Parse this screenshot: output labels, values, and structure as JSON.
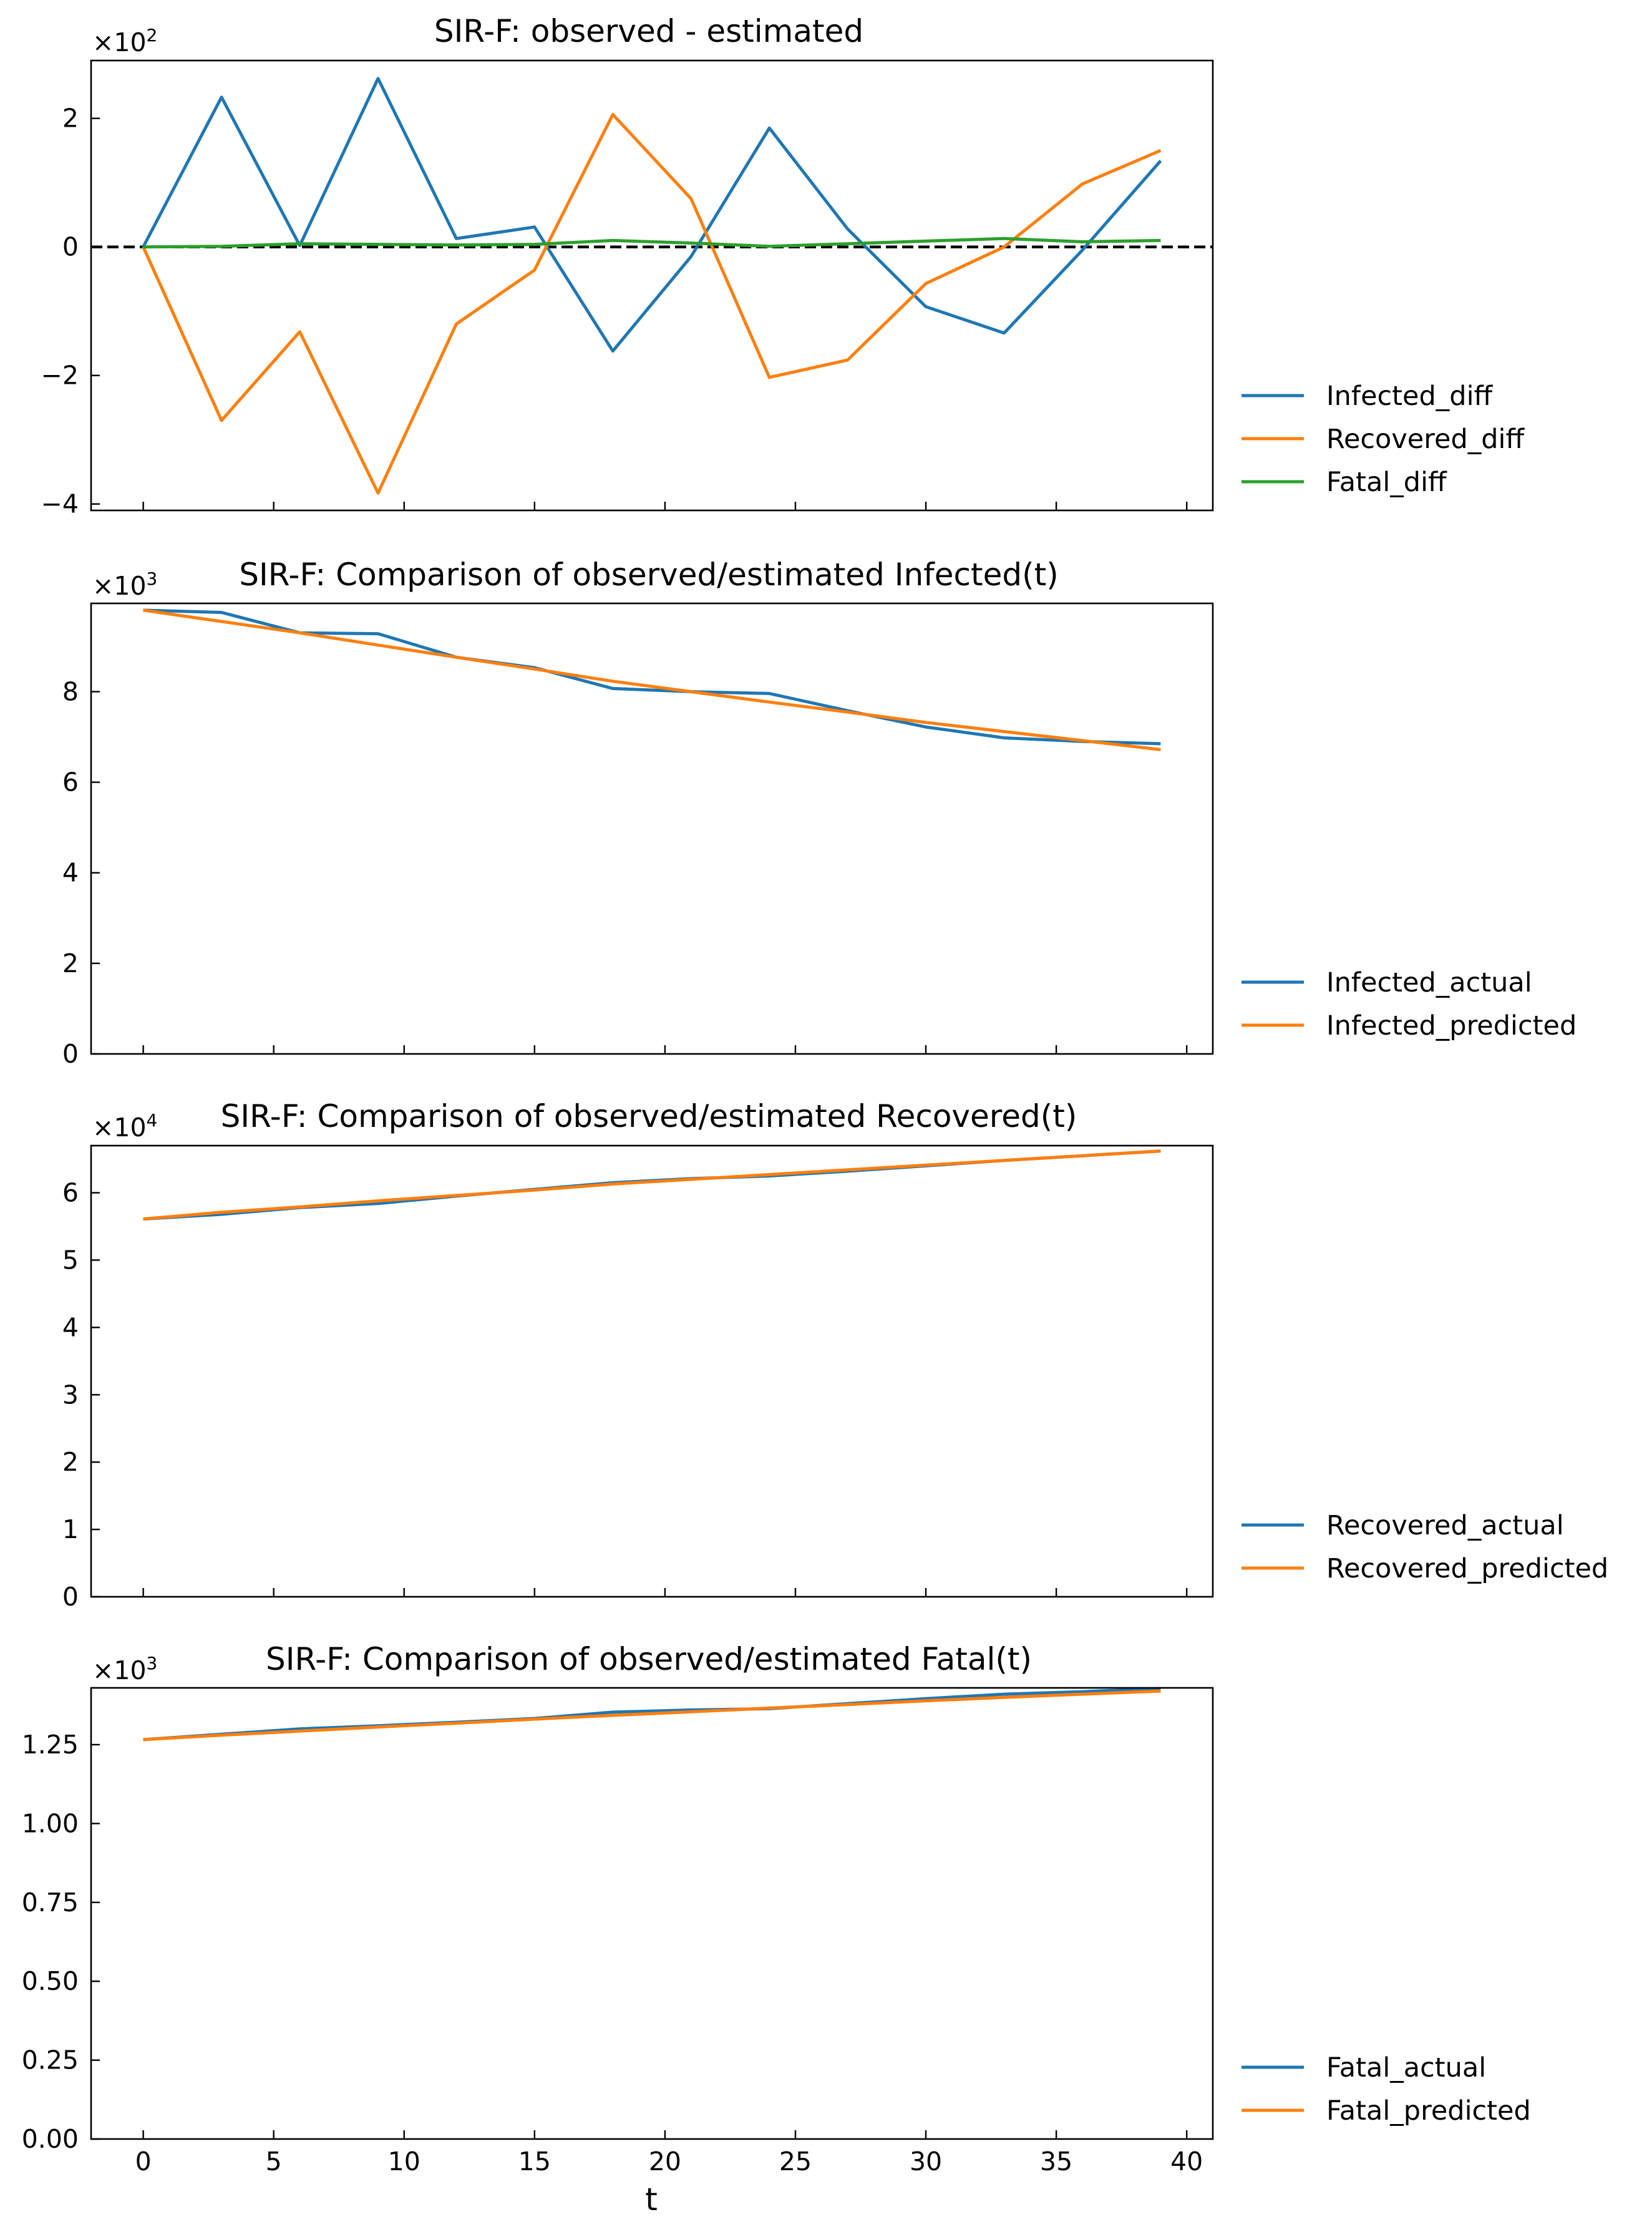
{
  "colors": {
    "blue": "#1f77b4",
    "orange": "#ff7f0e",
    "green": "#2ca02c",
    "zero_line": "#000000"
  },
  "xlabel": "t",
  "x_ticks": [
    0,
    5,
    10,
    15,
    20,
    25,
    30,
    35,
    40
  ],
  "chart_data": [
    {
      "type": "line",
      "title": "SIR-F: observed - estimated",
      "multiplier": "×10",
      "exponent": "2",
      "x": [
        0,
        3,
        6,
        9,
        12,
        15,
        18,
        21,
        24,
        27,
        30,
        33,
        36,
        39
      ],
      "xlim": [
        -2,
        41
      ],
      "ylim": [
        -4.1,
        2.9
      ],
      "y_ticks": [
        -4,
        -2,
        0,
        2
      ],
      "y_tick_labels": [
        "−4",
        "−2",
        "0",
        "2"
      ],
      "zero_line": true,
      "grid": false,
      "legend_position": "right",
      "series": [
        {
          "name": "Infected_diff",
          "color": "blue",
          "values": [
            0,
            2.33,
            0.02,
            2.62,
            0.13,
            0.31,
            -1.62,
            -0.15,
            1.85,
            0.28,
            -0.93,
            -1.34,
            -0.05,
            1.34
          ]
        },
        {
          "name": "Recovered_diff",
          "color": "orange",
          "values": [
            0,
            -2.7,
            -1.32,
            -3.83,
            -1.2,
            -0.36,
            2.06,
            0.75,
            -2.03,
            -1.76,
            -0.57,
            0,
            0.98,
            1.5
          ]
        },
        {
          "name": "Fatal_diff",
          "color": "green",
          "values": [
            0,
            0.01,
            0.05,
            0.04,
            0.03,
            0.04,
            0.1,
            0.06,
            0.01,
            0.05,
            0.09,
            0.13,
            0.08,
            0.1
          ]
        }
      ]
    },
    {
      "type": "line",
      "title": "SIR-F: Comparison of observed/estimated Infected(t)",
      "multiplier": "×10",
      "exponent": "3",
      "x": [
        0,
        3,
        6,
        9,
        12,
        15,
        18,
        21,
        24,
        27,
        30,
        33,
        36,
        39
      ],
      "xlim": [
        -2,
        41
      ],
      "ylim": [
        0,
        9.95
      ],
      "y_ticks": [
        0,
        2,
        4,
        6,
        8
      ],
      "y_tick_labels": [
        "0",
        "2",
        "4",
        "6",
        "8"
      ],
      "grid": false,
      "legend_position": "right",
      "series": [
        {
          "name": "Infected_actual",
          "color": "blue",
          "values": [
            9.8,
            9.75,
            9.3,
            9.28,
            8.76,
            8.53,
            8.07,
            8.0,
            7.96,
            7.58,
            7.22,
            6.98,
            6.9,
            6.85
          ]
        },
        {
          "name": "Infected_predicted",
          "color": "orange",
          "values": [
            9.8,
            9.55,
            9.3,
            9.03,
            8.76,
            8.5,
            8.23,
            8.0,
            7.77,
            7.55,
            7.32,
            7.12,
            6.92,
            6.72
          ]
        }
      ]
    },
    {
      "type": "line",
      "title": "SIR-F: Comparison of observed/estimated Recovered(t)",
      "multiplier": "×10",
      "exponent": "4",
      "x": [
        0,
        3,
        6,
        9,
        12,
        15,
        18,
        21,
        24,
        27,
        30,
        33,
        36,
        39
      ],
      "xlim": [
        -2,
        41
      ],
      "ylim": [
        0,
        6.7
      ],
      "y_ticks": [
        0,
        1,
        2,
        3,
        4,
        5,
        6
      ],
      "y_tick_labels": [
        "0",
        "1",
        "2",
        "3",
        "4",
        "5",
        "6"
      ],
      "grid": false,
      "legend_position": "right",
      "series": [
        {
          "name": "Recovered_actual",
          "color": "blue",
          "values": [
            5.61,
            5.68,
            5.78,
            5.84,
            5.95,
            6.05,
            6.15,
            6.21,
            6.25,
            6.32,
            6.4,
            6.48,
            6.55,
            6.62
          ]
        },
        {
          "name": "Recovered_predicted",
          "color": "orange",
          "values": [
            5.61,
            5.71,
            5.79,
            5.88,
            5.96,
            6.04,
            6.13,
            6.2,
            6.27,
            6.34,
            6.41,
            6.48,
            6.55,
            6.62
          ]
        }
      ]
    },
    {
      "type": "line",
      "title": "SIR-F: Comparison of observed/estimated Fatal(t)",
      "multiplier": "×10",
      "exponent": "3",
      "x": [
        0,
        3,
        6,
        9,
        12,
        15,
        18,
        21,
        24,
        27,
        30,
        33,
        36,
        39
      ],
      "xlim": [
        -2,
        41
      ],
      "ylim": [
        0,
        1.43
      ],
      "y_ticks": [
        0,
        0.25,
        0.5,
        0.75,
        1.0,
        1.25
      ],
      "y_tick_labels": [
        "0.00",
        "0.25",
        "0.50",
        "0.75",
        "1.00",
        "1.25"
      ],
      "grid": false,
      "legend_position": "right",
      "series": [
        {
          "name": "Fatal_actual",
          "color": "blue",
          "values": [
            1.266,
            1.283,
            1.3,
            1.31,
            1.321,
            1.333,
            1.353,
            1.36,
            1.364,
            1.38,
            1.396,
            1.41,
            1.418,
            1.428
          ]
        },
        {
          "name": "Fatal_predicted",
          "color": "orange",
          "values": [
            1.266,
            1.28,
            1.293,
            1.306,
            1.318,
            1.331,
            1.343,
            1.354,
            1.366,
            1.377,
            1.389,
            1.4,
            1.41,
            1.42
          ]
        }
      ]
    }
  ]
}
